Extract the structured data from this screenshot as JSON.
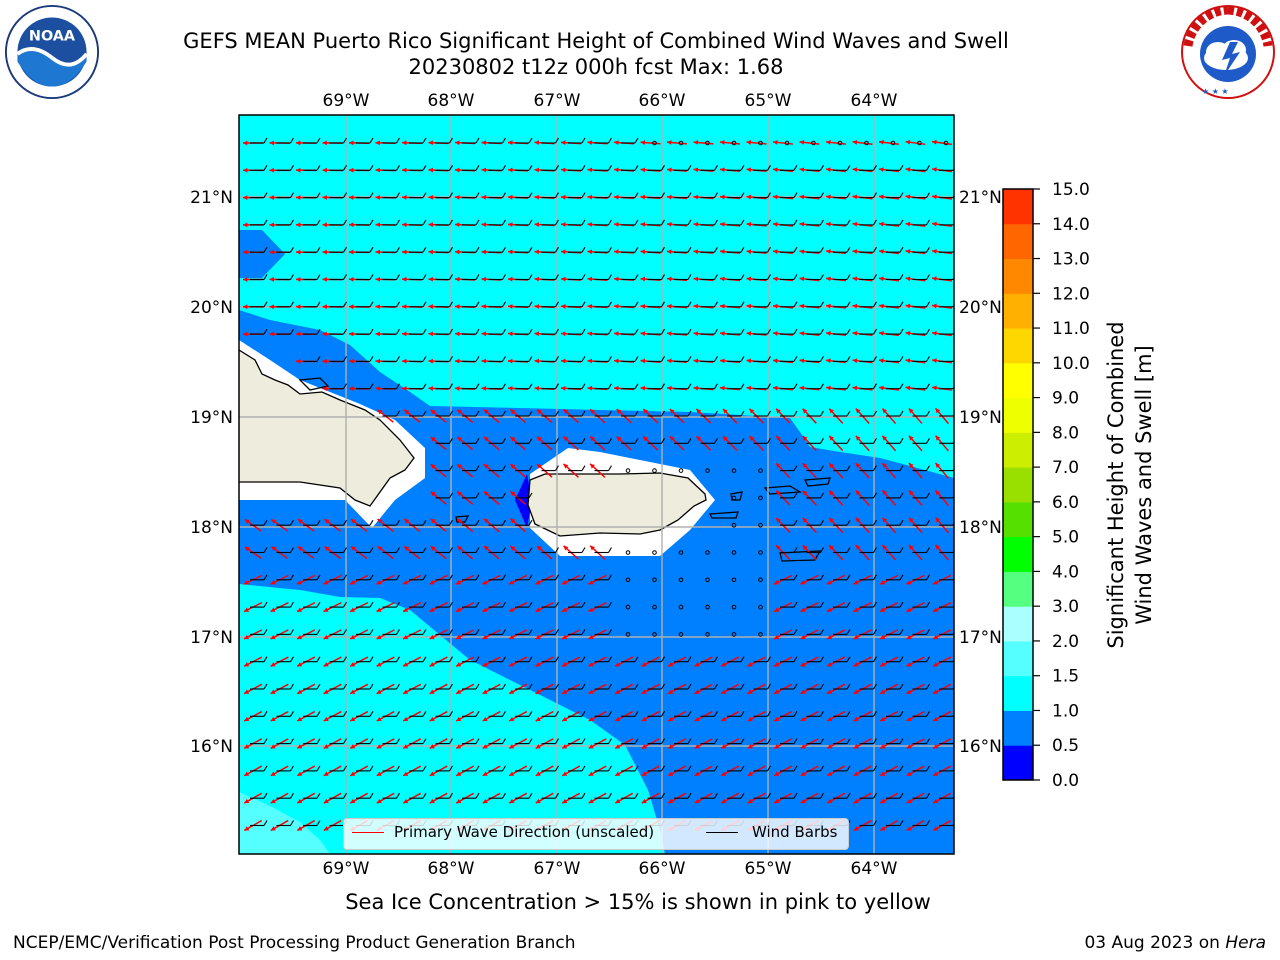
{
  "header": {
    "title_line1": "GEFS MEAN Puerto Rico Significant Height of Combined Wind Waves and Swell",
    "title_line2": "20230802 t12z 000h fcst   Max: 1.68"
  },
  "logos": {
    "left": {
      "icon": "noaa-logo-icon",
      "text": "NOAA",
      "ring_text": "NATIONAL OCEANIC AND ATMOSPHERIC ADMINISTRATION · U.S. DEPARTMENT OF COMMERCE"
    },
    "right": {
      "icon": "nws-logo-icon",
      "ring_text": "NATIONAL WEATHER SERVICE"
    }
  },
  "map": {
    "lon_labels": [
      "69°W",
      "68°W",
      "67°W",
      "66°W",
      "65°W",
      "64°W"
    ],
    "lat_labels": [
      "21°N",
      "20°N",
      "19°N",
      "18°N",
      "17°N",
      "16°N"
    ],
    "colors": {
      "band_0_0.5": "#0000ff",
      "band_0.5_1.0": "#0080ff",
      "band_1.0_1.5": "#00ffff",
      "band_1.5_2.0": "#55ffff",
      "land": "#eeecdc",
      "wave_arrow": "#ff0000",
      "wind_barb": "#000000",
      "grid": "#b0b0b0"
    }
  },
  "legend": {
    "wave_label": "Primary Wave Direction (unscaled)",
    "barb_label": "Wind Barbs"
  },
  "colorbar": {
    "label_line1": "Significant Height of Combined",
    "label_line2": "Wind Waves and Swell [m]",
    "ticks": [
      "0.0",
      "0.5",
      "1.0",
      "1.5",
      "2.0",
      "3.0",
      "4.0",
      "5.0",
      "6.0",
      "7.0",
      "8.0",
      "9.0",
      "10.0",
      "11.0",
      "12.0",
      "13.0",
      "14.0",
      "15.0"
    ],
    "colors": [
      "#0000ff",
      "#0080ff",
      "#00ffff",
      "#55ffff",
      "#aaffff",
      "#55ff80",
      "#00ff00",
      "#55e000",
      "#99e000",
      "#ccee00",
      "#eeff00",
      "#ffff00",
      "#ffd700",
      "#ffb000",
      "#ff8800",
      "#ff6600",
      "#ff3300",
      "#ff0000"
    ]
  },
  "subtitle": "Sea Ice Concentration > 15% is shown in pink to yellow",
  "footer": {
    "left": "NCEP/EMC/Verification Post Processing Product Generation Branch",
    "right_prefix": "03 Aug 2023 on ",
    "right_host": "Hera"
  }
}
